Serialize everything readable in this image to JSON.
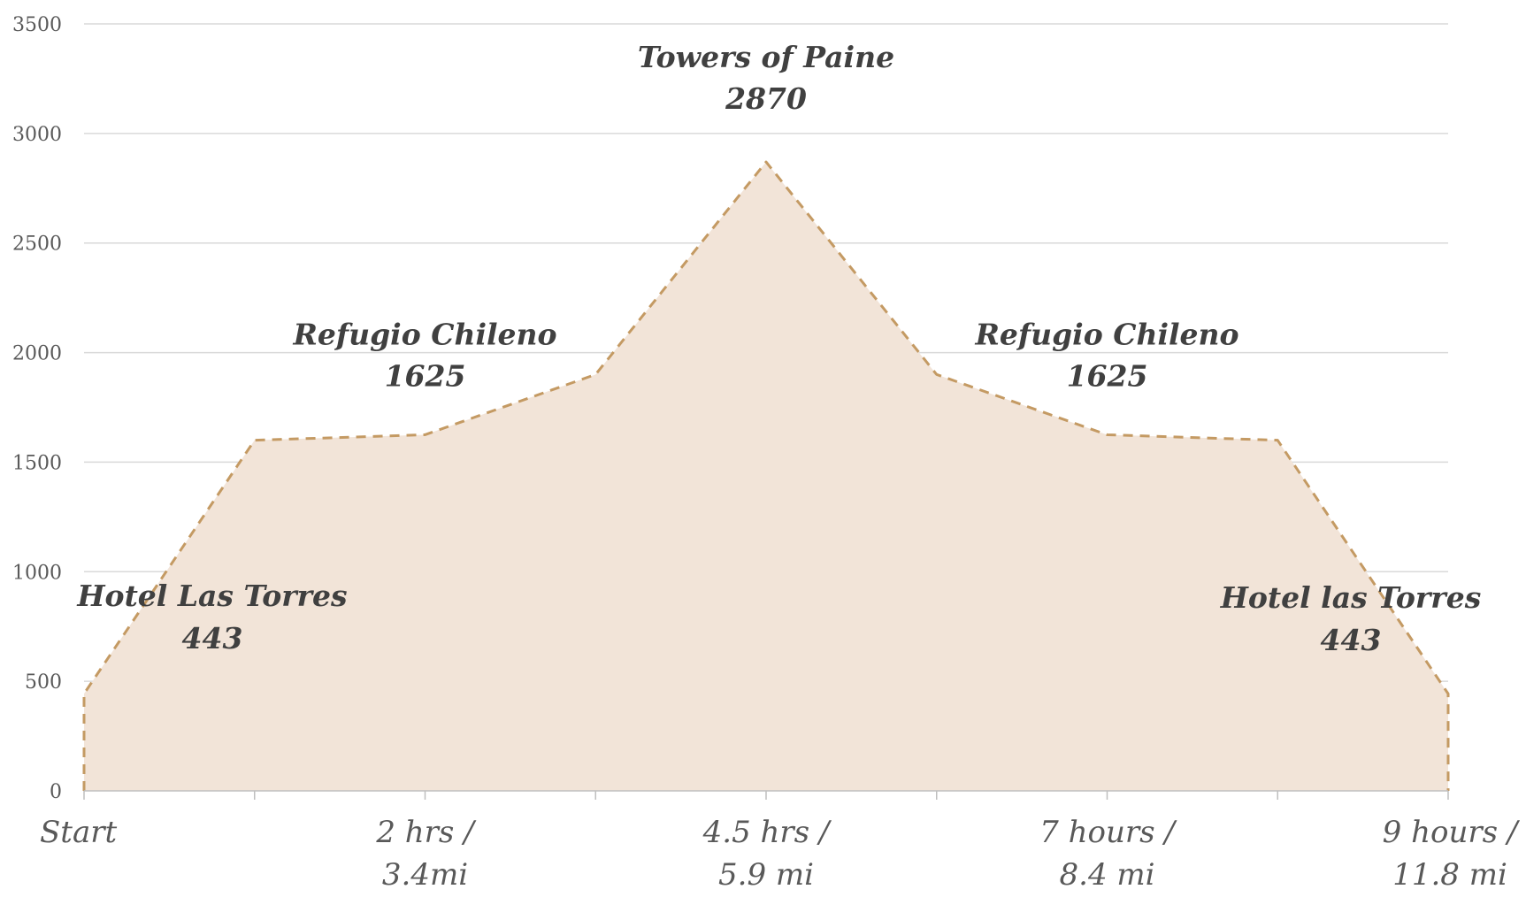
{
  "chart_data": {
    "type": "area",
    "title": "",
    "xlabel": "",
    "ylabel": "",
    "ylim": [
      0,
      3500
    ],
    "yticks": [
      0,
      500,
      1000,
      1500,
      2000,
      2500,
      3000,
      3500
    ],
    "grid": true,
    "legend": "none",
    "fill_color": "#f2e4d8",
    "line_color": "#c49a63",
    "line_style": "dashed",
    "x_labels": [
      {
        "index": 0,
        "line1": "Start",
        "line2": ""
      },
      {
        "index": 2,
        "line1": "2 hrs /",
        "line2": "3.4mi"
      },
      {
        "index": 4,
        "line1": "4.5 hrs /",
        "line2": "5.9 mi"
      },
      {
        "index": 6,
        "line1": "7 hours /",
        "line2": "8.4 mi"
      },
      {
        "index": 8,
        "line1": "9 hours /",
        "line2": "11.8 mi"
      }
    ],
    "values": [
      443,
      1600,
      1625,
      1900,
      2870,
      1900,
      1625,
      1600,
      443
    ],
    "annotations": [
      {
        "index": 0,
        "name": "Hotel Las Torres",
        "value": "443",
        "place": "right"
      },
      {
        "index": 2,
        "name": "Refugio Chileno",
        "value": "1625",
        "place": "above"
      },
      {
        "index": 4,
        "name": "Towers of Paine",
        "value": "2870",
        "place": "above"
      },
      {
        "index": 6,
        "name": "Refugio Chileno",
        "value": "1625",
        "place": "above"
      },
      {
        "index": 8,
        "name": "Hotel las Torres",
        "value": "443",
        "place": "left"
      }
    ]
  }
}
